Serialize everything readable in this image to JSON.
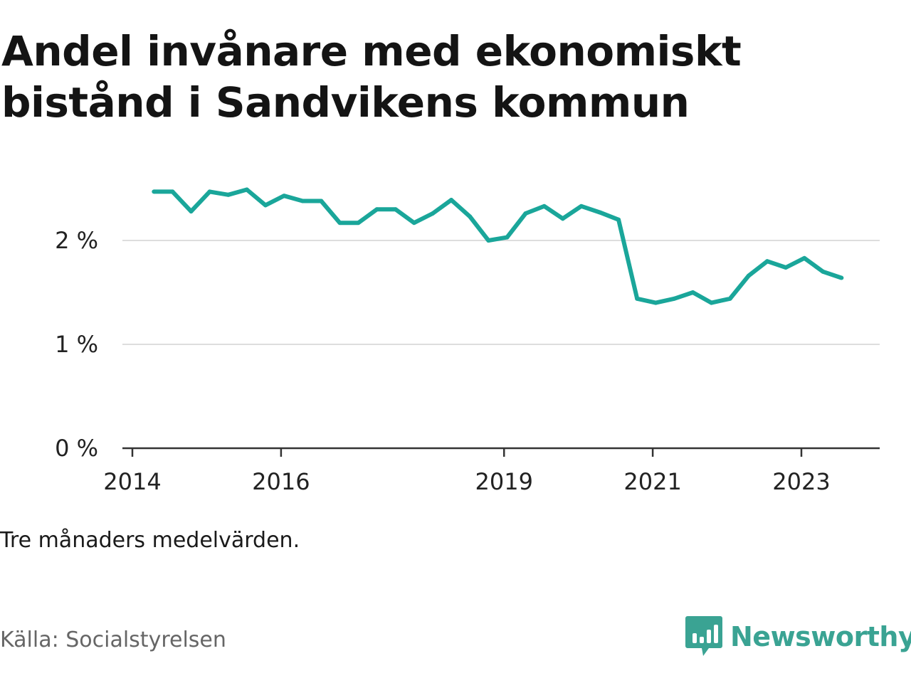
{
  "title": "Andel invånare med ekonomiskt bistånd i Sandvikens kommun",
  "note": "Tre månaders medelvärden.",
  "source": "Källa: Socialstyrelsen",
  "brand": {
    "name": "Newsworthy",
    "icon": "newsworthy-logo-icon"
  },
  "colors": {
    "line": "#1aa69a",
    "grid": "#dddddd",
    "axis": "#333333",
    "brand": "#3aa393"
  },
  "chart_data": {
    "type": "line",
    "title": "Andel invånare med ekonomiskt bistånd i Sandvikens kommun",
    "xlabel": "",
    "ylabel": "",
    "ylim": [
      0,
      2.5
    ],
    "yticks": [
      {
        "value": 0,
        "label": "0 %"
      },
      {
        "value": 1,
        "label": "1 %"
      },
      {
        "value": 2,
        "label": "2 %"
      }
    ],
    "xticks": [
      {
        "value": 2014.0,
        "label": "2014"
      },
      {
        "value": 2016.0,
        "label": "2016"
      },
      {
        "value": 2019.0,
        "label": "2019"
      },
      {
        "value": 2021.0,
        "label": "2021"
      },
      {
        "value": 2023.0,
        "label": "2023"
      }
    ],
    "grid": true,
    "series": [
      {
        "name": "",
        "values": [
          {
            "x": 2014.29,
            "y": 2.47
          },
          {
            "x": 2014.54,
            "y": 2.47
          },
          {
            "x": 2014.79,
            "y": 2.28
          },
          {
            "x": 2015.04,
            "y": 2.47
          },
          {
            "x": 2015.29,
            "y": 2.44
          },
          {
            "x": 2015.54,
            "y": 2.49
          },
          {
            "x": 2015.79,
            "y": 2.34
          },
          {
            "x": 2016.04,
            "y": 2.43
          },
          {
            "x": 2016.29,
            "y": 2.38
          },
          {
            "x": 2016.54,
            "y": 2.38
          },
          {
            "x": 2016.79,
            "y": 2.17
          },
          {
            "x": 2017.04,
            "y": 2.17
          },
          {
            "x": 2017.29,
            "y": 2.3
          },
          {
            "x": 2017.54,
            "y": 2.3
          },
          {
            "x": 2017.79,
            "y": 2.17
          },
          {
            "x": 2018.04,
            "y": 2.26
          },
          {
            "x": 2018.29,
            "y": 2.39
          },
          {
            "x": 2018.54,
            "y": 2.23
          },
          {
            "x": 2018.79,
            "y": 2.0
          },
          {
            "x": 2019.04,
            "y": 2.03
          },
          {
            "x": 2019.29,
            "y": 2.26
          },
          {
            "x": 2019.54,
            "y": 2.33
          },
          {
            "x": 2019.79,
            "y": 2.21
          },
          {
            "x": 2020.04,
            "y": 2.33
          },
          {
            "x": 2020.29,
            "y": 2.27
          },
          {
            "x": 2020.54,
            "y": 2.2
          },
          {
            "x": 2020.79,
            "y": 1.44
          },
          {
            "x": 2021.04,
            "y": 1.4
          },
          {
            "x": 2021.29,
            "y": 1.44
          },
          {
            "x": 2021.54,
            "y": 1.5
          },
          {
            "x": 2021.79,
            "y": 1.4
          },
          {
            "x": 2022.04,
            "y": 1.44
          },
          {
            "x": 2022.29,
            "y": 1.66
          },
          {
            "x": 2022.54,
            "y": 1.8
          },
          {
            "x": 2022.79,
            "y": 1.74
          },
          {
            "x": 2023.04,
            "y": 1.83
          },
          {
            "x": 2023.29,
            "y": 1.7
          },
          {
            "x": 2023.54,
            "y": 1.64
          }
        ]
      }
    ]
  }
}
